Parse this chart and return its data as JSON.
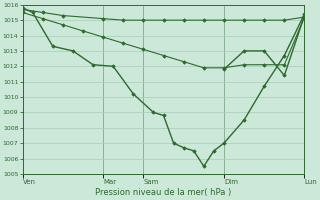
{
  "xlabel": "Pression niveau de la mer( hPa )",
  "bg_color": "#cce8d8",
  "grid_color": "#aaccbb",
  "line_color": "#2d6a2d",
  "ylim": [
    1005,
    1016
  ],
  "yticks": [
    1005,
    1006,
    1007,
    1008,
    1009,
    1010,
    1011,
    1012,
    1013,
    1014,
    1015,
    1016
  ],
  "xlim": [
    0,
    56
  ],
  "day_labels": [
    "Ven",
    "Mar",
    "Sam",
    "Dim",
    "Lun"
  ],
  "day_positions": [
    0,
    16,
    24,
    40,
    56
  ],
  "line_flat_x": [
    0,
    4,
    8,
    16,
    20,
    24,
    28,
    32,
    36,
    40,
    44,
    48,
    52,
    56
  ],
  "line_flat_y": [
    1015.7,
    1015.5,
    1015.3,
    1015.1,
    1015.0,
    1015.0,
    1015.0,
    1015.0,
    1015.0,
    1015.0,
    1015.0,
    1015.0,
    1015.0,
    1015.2
  ],
  "line_decline_x": [
    0,
    4,
    8,
    12,
    16,
    20,
    24,
    28,
    32,
    36,
    40,
    44,
    48,
    52,
    56
  ],
  "line_decline_y": [
    1015.5,
    1015.1,
    1014.7,
    1014.3,
    1013.9,
    1013.5,
    1013.1,
    1012.7,
    1012.3,
    1011.9,
    1011.9,
    1012.1,
    1012.1,
    1012.1,
    1015.2
  ],
  "line_main_x": [
    0,
    2,
    6,
    10,
    14,
    18,
    22,
    26,
    28,
    30,
    32,
    34,
    36,
    38,
    40,
    44,
    48,
    52,
    56
  ],
  "line_main_y": [
    1015.8,
    1015.5,
    1013.3,
    1013.0,
    1012.1,
    1012.0,
    1010.2,
    1009.0,
    1008.8,
    1007.0,
    1006.7,
    1006.5,
    1005.5,
    1006.5,
    1007.0,
    1008.5,
    1010.7,
    1012.7,
    1015.4
  ],
  "line_right_x": [
    40,
    44,
    48,
    52,
    56
  ],
  "line_right_y": [
    1011.8,
    1013.0,
    1013.0,
    1011.4,
    1015.3
  ]
}
